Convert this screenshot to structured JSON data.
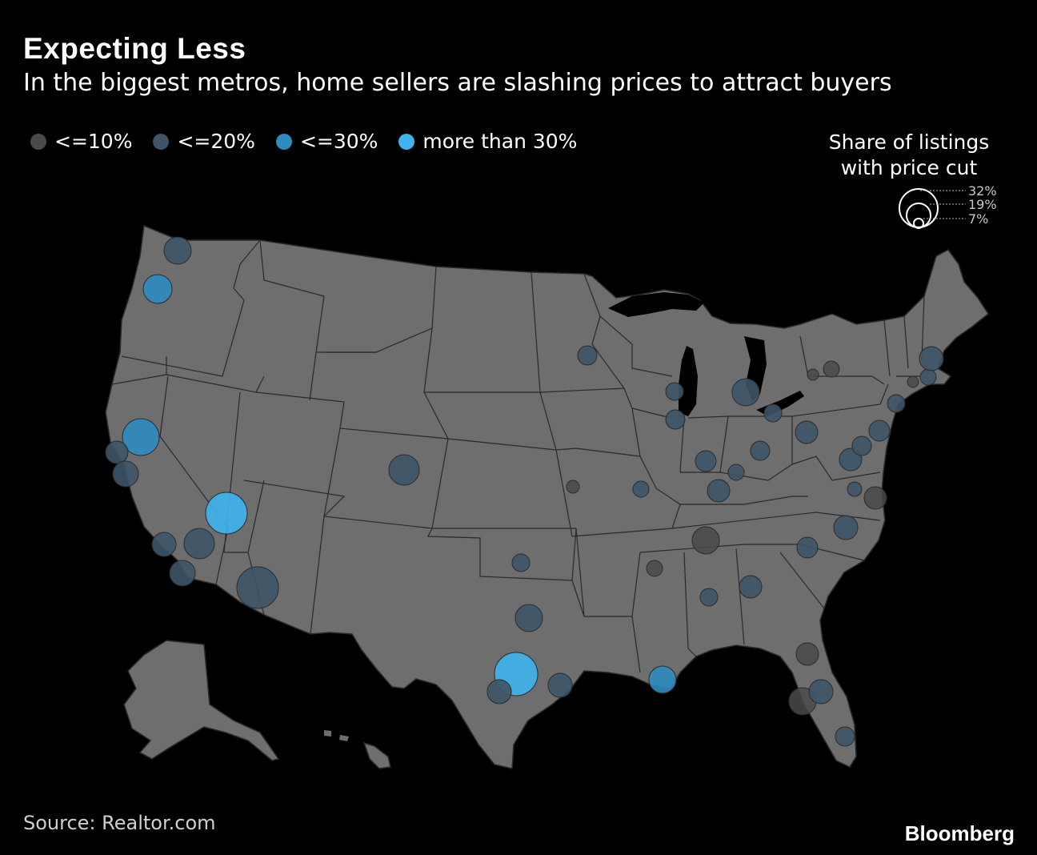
{
  "title": "Expecting Less",
  "subtitle": "In the biggest metros, home sellers are slashing prices to attract buyers",
  "legend": [
    {
      "label": "<=10%",
      "color": "#4a4a4a"
    },
    {
      "label": "<=20%",
      "color": "#3d5567"
    },
    {
      "label": "<=30%",
      "color": "#2e8bc0"
    },
    {
      "label": "more than 30%",
      "color": "#3eb3ec"
    }
  ],
  "size_legend": {
    "title_line1": "Share of listings",
    "title_line2": "with price cut",
    "values": [
      "32%",
      "19%",
      "7%"
    ]
  },
  "source": "Source: Realtor.com",
  "brand": "Bloomberg",
  "colors": {
    "background": "#000000",
    "land": "#6e6e6e",
    "border": "#222222"
  },
  "metro_bubbles": [
    {
      "cat": 1
    },
    {
      "cat": 2
    },
    {
      "cat": 2
    },
    {
      "cat": 1
    },
    {
      "cat": 1
    },
    {
      "cat": 1
    },
    {
      "cat": 3
    },
    {
      "cat": 1
    },
    {
      "cat": 1
    },
    {
      "cat": 1
    },
    {
      "cat": 1
    },
    {
      "cat": 3
    },
    {
      "cat": 1
    },
    {
      "cat": 1
    },
    {
      "cat": 1
    },
    {
      "cat": 0
    },
    {
      "cat": 1
    },
    {
      "cat": 1
    },
    {
      "cat": 2
    },
    {
      "cat": 1
    },
    {
      "cat": 0
    },
    {
      "cat": 1
    },
    {
      "cat": 1
    },
    {
      "cat": 1
    },
    {
      "cat": 1
    },
    {
      "cat": 1
    },
    {
      "cat": 1
    },
    {
      "cat": 0
    },
    {
      "cat": 1
    },
    {
      "cat": 1
    },
    {
      "cat": 1
    },
    {
      "cat": 1
    },
    {
      "cat": 0
    },
    {
      "cat": 0
    },
    {
      "cat": 1
    },
    {
      "cat": 1
    },
    {
      "cat": 1
    },
    {
      "cat": 1
    },
    {
      "cat": 0
    },
    {
      "cat": 1
    },
    {
      "cat": 1
    },
    {
      "cat": 1
    },
    {
      "cat": 1
    },
    {
      "cat": 0
    },
    {
      "cat": 1
    },
    {
      "cat": 1
    },
    {
      "cat": 0
    },
    {
      "cat": 0
    },
    {
      "cat": 1
    },
    {
      "cat": 1
    }
  ]
}
